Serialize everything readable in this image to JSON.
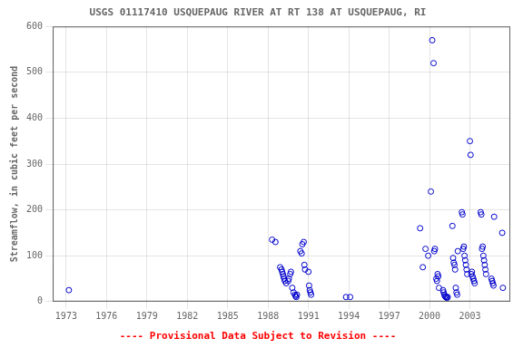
{
  "chart_data": {
    "type": "scatter",
    "title": "USGS 01117410 USQUEPAUG RIVER AT RT 138 AT USQUEPAUG, RI",
    "ylabel": "Streamflow, in cubic feet per second",
    "annotations": [
      {
        "text": "---- Provisional Data Subject to Revision ----",
        "color": "#ff0000"
      }
    ],
    "color": "#0000cc",
    "marker": "circle",
    "grid": true,
    "xlim": [
      1972,
      2006
    ],
    "ylim": [
      0,
      600
    ],
    "xticks": [
      1973,
      1976,
      1979,
      1982,
      1985,
      1988,
      1991,
      1994,
      1997,
      2000,
      2003
    ],
    "yticks": [
      0,
      100,
      200,
      300,
      400,
      500,
      600
    ],
    "x": [
      1973.2,
      1988.3,
      1988.55,
      1988.9,
      1989.0,
      1989.05,
      1989.1,
      1989.15,
      1989.2,
      1989.25,
      1989.35,
      1989.5,
      1989.55,
      1989.65,
      1989.7,
      1989.8,
      1989.9,
      1990.0,
      1990.05,
      1990.1,
      1990.15,
      1990.4,
      1990.5,
      1990.55,
      1990.65,
      1990.7,
      1990.75,
      1991.0,
      1991.05,
      1991.1,
      1991.15,
      1991.2,
      1993.8,
      1994.1,
      1999.3,
      1999.5,
      1999.7,
      1999.9,
      2000.1,
      2000.2,
      2000.3,
      2000.35,
      2000.4,
      2000.5,
      2000.55,
      2000.6,
      2000.65,
      2000.7,
      2001.0,
      2001.05,
      2001.1,
      2001.15,
      2001.2,
      2001.25,
      2001.3,
      2001.35,
      2001.7,
      2001.75,
      2001.8,
      2001.85,
      2001.9,
      2001.95,
      2002.0,
      2002.05,
      2002.1,
      2002.4,
      2002.45,
      2002.5,
      2002.55,
      2002.6,
      2002.65,
      2002.7,
      2002.75,
      2002.8,
      2003.0,
      2003.05,
      2003.1,
      2003.15,
      2003.2,
      2003.25,
      2003.3,
      2003.35,
      2003.8,
      2003.85,
      2003.9,
      2003.95,
      2004.0,
      2004.05,
      2004.1,
      2004.15,
      2004.2,
      2004.6,
      2004.65,
      2004.7,
      2004.75,
      2004.8,
      2005.4,
      2005.45
    ],
    "values": [
      25,
      135,
      130,
      75,
      70,
      65,
      60,
      55,
      50,
      45,
      40,
      45,
      50,
      60,
      65,
      30,
      20,
      15,
      12,
      10,
      15,
      110,
      105,
      125,
      130,
      80,
      70,
      65,
      35,
      25,
      20,
      15,
      10,
      10,
      160,
      75,
      115,
      100,
      240,
      570,
      520,
      110,
      115,
      50,
      45,
      60,
      55,
      30,
      25,
      20,
      15,
      12,
      10,
      10,
      8,
      10,
      165,
      95,
      85,
      80,
      70,
      30,
      20,
      15,
      110,
      195,
      190,
      115,
      120,
      100,
      90,
      80,
      70,
      60,
      350,
      320,
      60,
      65,
      55,
      50,
      45,
      40,
      195,
      190,
      115,
      120,
      100,
      90,
      80,
      70,
      60,
      50,
      45,
      40,
      35,
      185,
      150,
      30
    ]
  }
}
